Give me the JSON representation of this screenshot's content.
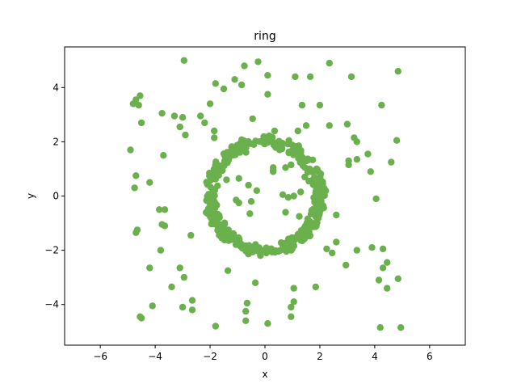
{
  "chart_data": {
    "type": "scatter",
    "title": "ring",
    "xlabel": "x",
    "ylabel": "y",
    "xlim": [
      -7.3,
      7.3
    ],
    "ylim": [
      -5.5,
      5.5
    ],
    "xticks": [
      -6,
      -4,
      -2,
      0,
      2,
      4,
      6
    ],
    "yticks": [
      -4,
      -2,
      0,
      2,
      4
    ],
    "x_tick_labels": [
      "−6",
      "−4",
      "−2",
      "0",
      "2",
      "4",
      "6"
    ],
    "y_tick_labels": [
      "−4",
      "−2",
      "0",
      "2",
      "4"
    ],
    "grid": false,
    "legend": "none",
    "color": "#6ab04c",
    "series": [
      {
        "ring_radius": 2.0,
        "ring_point_count": 420,
        "points": [
          [
            -4.9,
            1.7
          ],
          [
            -4.7,
            0.75
          ],
          [
            -4.75,
            0.3
          ],
          [
            -4.8,
            3.4
          ],
          [
            -4.7,
            3.55
          ],
          [
            -4.55,
            3.7
          ],
          [
            -4.6,
            3.35
          ],
          [
            -4.5,
            2.7
          ],
          [
            -4.7,
            -1.35
          ],
          [
            -4.65,
            -1.25
          ],
          [
            -4.55,
            -4.45
          ],
          [
            -4.5,
            -4.5
          ],
          [
            -4.2,
            0.5
          ],
          [
            -4.2,
            -2.65
          ],
          [
            -4.1,
            -4.05
          ],
          [
            -3.85,
            -0.5
          ],
          [
            -3.8,
            -2.0
          ],
          [
            -3.75,
            -1.05
          ],
          [
            -3.65,
            -0.5
          ],
          [
            -3.65,
            -1.1
          ],
          [
            -3.7,
            1.5
          ],
          [
            -3.75,
            3.05
          ],
          [
            -3.4,
            -3.35
          ],
          [
            -3.3,
            2.95
          ],
          [
            -3.1,
            2.55
          ],
          [
            -3.1,
            -2.65
          ],
          [
            -2.95,
            -3.0
          ],
          [
            -3.0,
            2.9
          ],
          [
            -2.9,
            2.25
          ],
          [
            -2.95,
            5.0
          ],
          [
            -3.0,
            -4.1
          ],
          [
            -2.7,
            -1.45
          ],
          [
            -2.65,
            -3.85
          ],
          [
            -2.65,
            -4.2
          ],
          [
            -2.35,
            2.95
          ],
          [
            -2.2,
            2.7
          ],
          [
            -2.0,
            3.4
          ],
          [
            -1.85,
            2.4
          ],
          [
            -1.8,
            4.15
          ],
          [
            -1.8,
            -4.8
          ],
          [
            -1.85,
            2.15
          ],
          [
            -1.5,
            3.95
          ],
          [
            -1.35,
            -2.75
          ],
          [
            -1.1,
            4.3
          ],
          [
            -0.85,
            4.1
          ],
          [
            -0.75,
            4.8
          ],
          [
            -0.65,
            -3.95
          ],
          [
            -0.7,
            -4.25
          ],
          [
            -0.7,
            -4.6
          ],
          [
            -0.35,
            -3.2
          ],
          [
            -0.25,
            4.95
          ],
          [
            -0.45,
            2.85
          ],
          [
            0.1,
            4.45
          ],
          [
            0.1,
            3.75
          ],
          [
            0.1,
            -4.7
          ],
          [
            0.95,
            -4.1
          ],
          [
            0.95,
            -4.45
          ],
          [
            1.05,
            -3.9
          ],
          [
            1.05,
            -3.4
          ],
          [
            1.1,
            4.4
          ],
          [
            1.2,
            2.4
          ],
          [
            1.35,
            3.35
          ],
          [
            1.5,
            2.6
          ],
          [
            1.65,
            4.4
          ],
          [
            1.85,
            -3.35
          ],
          [
            2.0,
            3.35
          ],
          [
            2.35,
            2.6
          ],
          [
            2.25,
            -1.95
          ],
          [
            2.45,
            -2.1
          ],
          [
            2.35,
            4.9
          ],
          [
            2.6,
            -1.7
          ],
          [
            2.6,
            -0.7
          ],
          [
            2.95,
            -2.55
          ],
          [
            3.0,
            2.65
          ],
          [
            3.05,
            1.3
          ],
          [
            3.05,
            1.15
          ],
          [
            3.15,
            4.4
          ],
          [
            3.25,
            2.15
          ],
          [
            3.35,
            2.0
          ],
          [
            3.35,
            1.35
          ],
          [
            3.35,
            -2.0
          ],
          [
            3.75,
            1.55
          ],
          [
            3.85,
            0.9
          ],
          [
            3.9,
            -1.9
          ],
          [
            4.05,
            -0.1
          ],
          [
            4.15,
            -3.1
          ],
          [
            4.3,
            -1.95
          ],
          [
            4.3,
            -2.65
          ],
          [
            4.25,
            3.35
          ],
          [
            4.45,
            -3.4
          ],
          [
            4.45,
            -2.45
          ],
          [
            4.6,
            1.25
          ],
          [
            4.8,
            2.05
          ],
          [
            4.85,
            4.6
          ],
          [
            4.85,
            -3.05
          ],
          [
            4.2,
            -4.85
          ],
          [
            4.95,
            -4.85
          ],
          [
            -0.95,
            0.65
          ],
          [
            -1.05,
            -0.15
          ],
          [
            -0.95,
            -0.25
          ],
          [
            -0.5,
            -0.2
          ],
          [
            -0.55,
            -0.65
          ],
          [
            -0.3,
            0.2
          ],
          [
            0.35,
            2.4
          ],
          [
            0.3,
            1.05
          ],
          [
            0.3,
            0.95
          ],
          [
            0.3,
            0.9
          ],
          [
            0.75,
            1.05
          ],
          [
            0.95,
            1.15
          ],
          [
            0.65,
            0.05
          ],
          [
            0.85,
            -0.05
          ],
          [
            1.05,
            0.0
          ],
          [
            0.75,
            -0.6
          ],
          [
            1.25,
            -0.75
          ],
          [
            1.45,
            0.7
          ],
          [
            1.6,
            0.55
          ],
          [
            -1.4,
            0.6
          ],
          [
            -0.6,
            0.4
          ],
          [
            1.3,
            0.15
          ]
        ]
      }
    ]
  }
}
